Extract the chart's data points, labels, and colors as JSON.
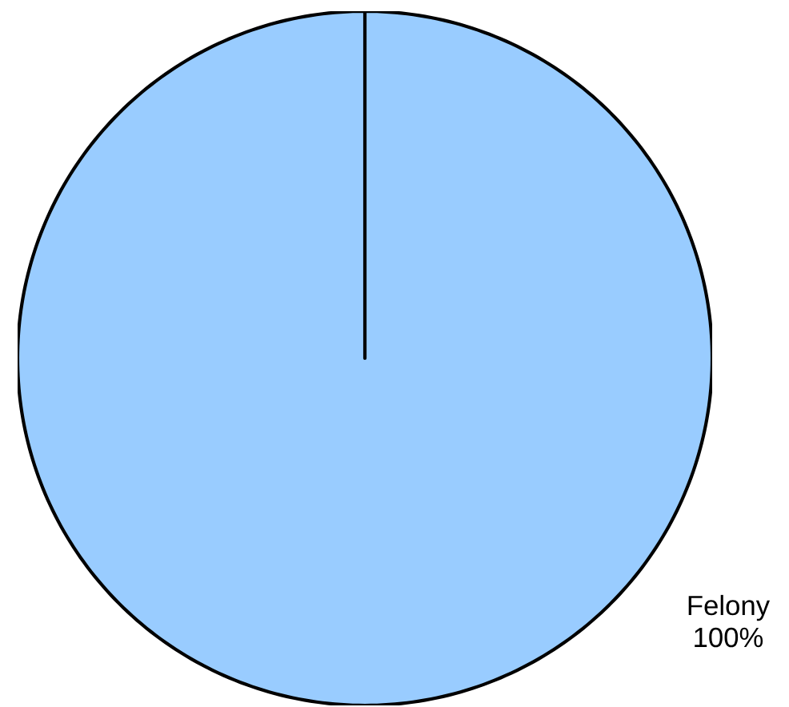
{
  "chart_data": {
    "type": "pie",
    "categories": [
      "Felony"
    ],
    "values": [
      100
    ],
    "value_labels": [
      "100%"
    ],
    "colors": [
      "#99ccff"
    ]
  }
}
